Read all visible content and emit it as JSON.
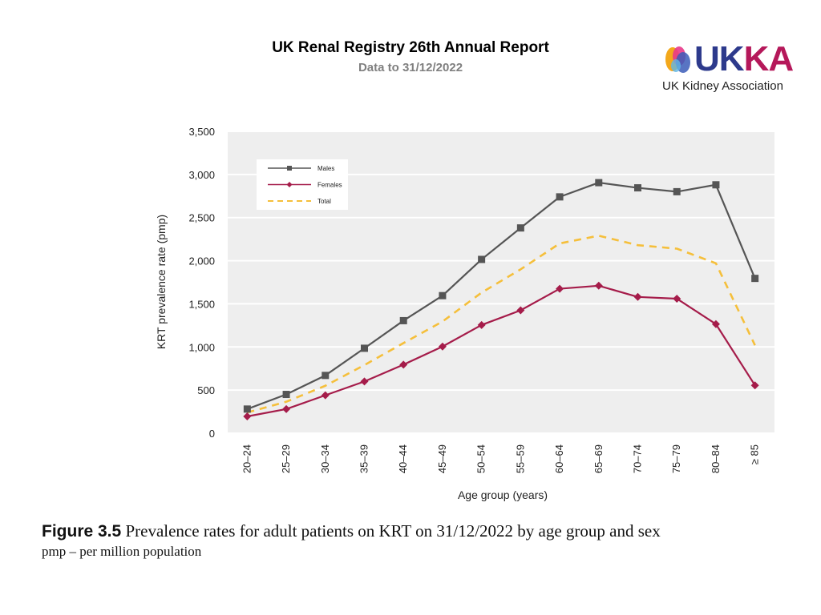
{
  "header": {
    "title": "UK Renal Registry 26th Annual Report",
    "subtitle": "Data to 31/12/2022"
  },
  "logo": {
    "word_uk": "UK",
    "word_ka": "KA",
    "tagline": "UK Kidney Association"
  },
  "caption": {
    "figure_label": "Figure 3.5",
    "text": "Prevalence rates for adult patients on KRT on 31/12/2022 by age group and sex",
    "note": "pmp – per million population"
  },
  "colors": {
    "males": "#555555",
    "females": "#a51c4a",
    "total": "#f5bf3b",
    "plot_bg": "#eeeeee"
  },
  "chart_data": {
    "type": "line",
    "title": "",
    "xlabel": "Age group (years)",
    "ylabel": "KRT prevalence rate (pmp)",
    "ylim": [
      0,
      3500
    ],
    "yticks": [
      0,
      500,
      1000,
      1500,
      2000,
      2500,
      3000,
      3500
    ],
    "ytick_labels": [
      "0",
      "500",
      "1,000",
      "1,500",
      "2,000",
      "2,500",
      "3,000",
      "3,500"
    ],
    "categories": [
      "20–24",
      "25–29",
      "30–34",
      "35–39",
      "40–44",
      "45–49",
      "50–54",
      "55–59",
      "60–64",
      "65–69",
      "70–74",
      "75–79",
      "80–84",
      "≥ 85"
    ],
    "legend_position": "top-left",
    "grid": true,
    "series": [
      {
        "name": "Males",
        "marker": "square",
        "style": "solid",
        "values": [
          280,
          450,
          670,
          985,
          1305,
          1595,
          2015,
          2380,
          2740,
          2905,
          2845,
          2800,
          2880,
          1795
        ]
      },
      {
        "name": "Females",
        "marker": "diamond",
        "style": "solid",
        "values": [
          195,
          280,
          440,
          600,
          795,
          1005,
          1255,
          1425,
          1675,
          1710,
          1580,
          1560,
          1265,
          555
        ]
      },
      {
        "name": "Total",
        "marker": "none",
        "style": "dashed",
        "values": [
          240,
          365,
          550,
          790,
          1045,
          1295,
          1630,
          1900,
          2200,
          2290,
          2180,
          2140,
          1970,
          1020
        ]
      }
    ]
  }
}
